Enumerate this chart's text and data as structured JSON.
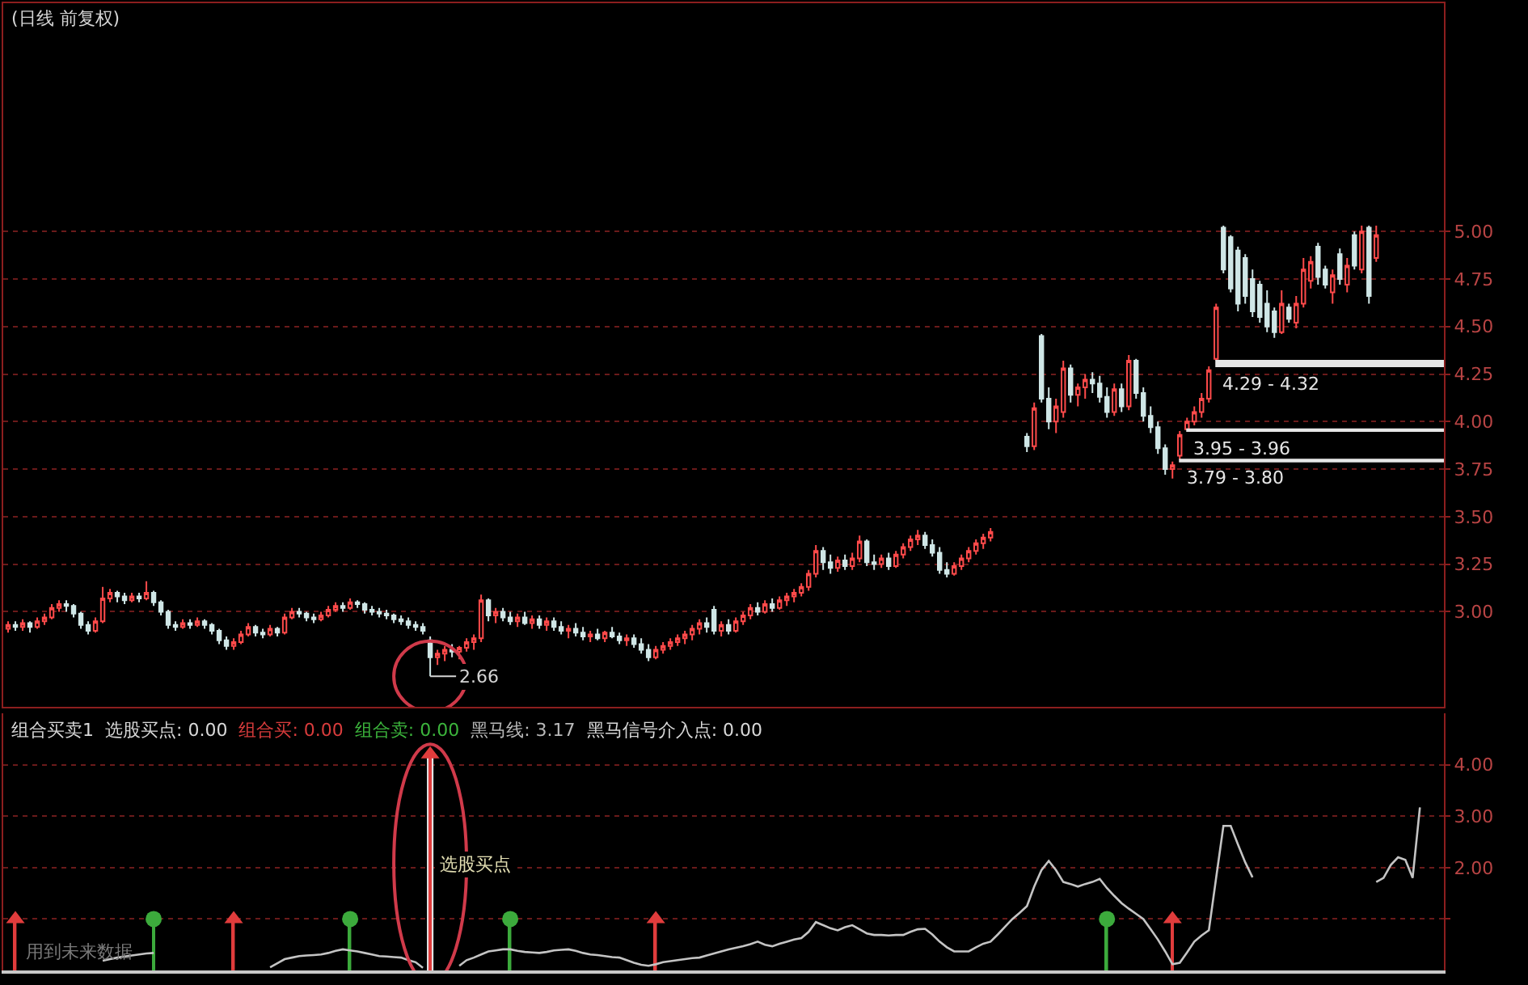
{
  "chart_data": [
    {
      "type": "candlestick",
      "title": "(日线 前复权)",
      "categories": [
        null,
        null,
        null,
        null,
        null,
        null,
        null,
        null,
        null,
        null,
        null,
        null,
        null,
        null,
        null,
        null,
        null,
        null,
        null,
        null,
        null,
        null,
        null,
        null,
        null,
        null,
        null,
        null,
        null,
        null,
        null,
        null,
        null,
        null,
        null,
        null,
        null,
        null,
        null,
        null,
        null,
        null,
        null,
        null,
        null,
        null,
        null,
        null,
        null,
        null,
        null,
        null,
        null,
        null,
        null,
        null,
        null,
        null,
        null,
        null,
        null,
        null,
        null,
        null,
        null,
        null,
        null,
        null,
        null,
        null,
        null,
        null,
        null,
        null,
        null,
        null,
        null,
        null,
        null,
        null,
        null,
        null,
        null,
        null,
        null,
        null,
        null,
        null,
        null,
        null,
        null,
        null,
        null,
        null,
        null,
        null,
        null,
        null,
        null,
        null,
        null,
        null,
        null,
        null,
        null,
        null,
        null,
        null,
        null,
        null,
        null,
        null,
        null,
        null,
        null,
        null,
        null,
        null,
        null,
        null,
        null,
        null,
        null,
        null,
        null,
        null,
        null,
        null,
        null,
        null,
        null,
        null,
        null,
        null,
        null,
        null,
        null,
        null,
        null,
        null,
        null,
        null,
        null,
        null,
        null,
        null,
        null,
        null,
        null,
        null,
        null,
        null,
        null,
        null,
        null,
        null,
        null,
        null,
        null,
        null,
        null,
        null,
        null,
        null,
        null,
        null,
        null,
        null,
        null,
        null,
        null,
        null,
        null,
        null,
        null,
        null,
        null,
        null,
        null,
        null,
        null,
        null,
        null,
        null,
        null,
        null,
        null,
        null,
        null,
        null,
        null,
        null,
        null,
        null,
        null
      ],
      "ohlc": [
        [
          2.91,
          2.95,
          2.89,
          2.93
        ],
        [
          2.93,
          2.95,
          2.9,
          2.92
        ],
        [
          2.92,
          2.96,
          2.9,
          2.94
        ],
        [
          2.94,
          2.95,
          2.89,
          2.92
        ],
        [
          2.92,
          2.97,
          2.91,
          2.95
        ],
        [
          2.95,
          2.99,
          2.93,
          2.97
        ],
        [
          2.97,
          3.04,
          2.96,
          3.02
        ],
        [
          3.02,
          3.06,
          3.0,
          3.04
        ],
        [
          3.04,
          3.06,
          3.0,
          3.03
        ],
        [
          3.03,
          3.04,
          2.97,
          2.99
        ],
        [
          2.99,
          3.0,
          2.91,
          2.93
        ],
        [
          2.93,
          2.95,
          2.88,
          2.9
        ],
        [
          2.9,
          2.97,
          2.89,
          2.95
        ],
        [
          2.95,
          3.13,
          2.94,
          3.07
        ],
        [
          3.07,
          3.12,
          3.05,
          3.1
        ],
        [
          3.1,
          3.11,
          3.05,
          3.08
        ],
        [
          3.08,
          3.1,
          3.04,
          3.06
        ],
        [
          3.06,
          3.1,
          3.05,
          3.08
        ],
        [
          3.08,
          3.1,
          3.05,
          3.07
        ],
        [
          3.07,
          3.16,
          3.06,
          3.1
        ],
        [
          3.1,
          3.11,
          3.03,
          3.05
        ],
        [
          3.05,
          3.06,
          2.98,
          3.0
        ],
        [
          3.0,
          3.01,
          2.91,
          2.93
        ],
        [
          2.93,
          2.95,
          2.9,
          2.92
        ],
        [
          2.92,
          2.96,
          2.91,
          2.94
        ],
        [
          2.94,
          2.96,
          2.91,
          2.93
        ],
        [
          2.93,
          2.97,
          2.92,
          2.95
        ],
        [
          2.95,
          2.96,
          2.91,
          2.93
        ],
        [
          2.93,
          2.94,
          2.88,
          2.9
        ],
        [
          2.9,
          2.91,
          2.83,
          2.85
        ],
        [
          2.85,
          2.87,
          2.8,
          2.82
        ],
        [
          2.82,
          2.86,
          2.8,
          2.84
        ],
        [
          2.84,
          2.9,
          2.83,
          2.88
        ],
        [
          2.88,
          2.94,
          2.87,
          2.92
        ],
        [
          2.92,
          2.93,
          2.87,
          2.89
        ],
        [
          2.89,
          2.91,
          2.86,
          2.88
        ],
        [
          2.88,
          2.93,
          2.87,
          2.91
        ],
        [
          2.91,
          2.92,
          2.87,
          2.89
        ],
        [
          2.89,
          2.99,
          2.88,
          2.97
        ],
        [
          2.97,
          3.02,
          2.96,
          3.0
        ],
        [
          3.0,
          3.02,
          2.97,
          2.99
        ],
        [
          2.99,
          3.0,
          2.95,
          2.97
        ],
        [
          2.97,
          2.99,
          2.94,
          2.96
        ],
        [
          2.96,
          3.0,
          2.95,
          2.98
        ],
        [
          2.98,
          3.03,
          2.97,
          3.01
        ],
        [
          3.01,
          3.05,
          3.0,
          3.03
        ],
        [
          3.03,
          3.05,
          3.0,
          3.02
        ],
        [
          3.02,
          3.07,
          3.01,
          3.05
        ],
        [
          3.05,
          3.06,
          3.02,
          3.04
        ],
        [
          3.04,
          3.05,
          2.99,
          3.01
        ],
        [
          3.01,
          3.03,
          2.98,
          3.0
        ],
        [
          3.0,
          3.02,
          2.97,
          2.99
        ],
        [
          2.99,
          3.01,
          2.96,
          2.98
        ],
        [
          2.98,
          2.99,
          2.94,
          2.96
        ],
        [
          2.96,
          2.98,
          2.93,
          2.95
        ],
        [
          2.95,
          2.97,
          2.91,
          2.93
        ],
        [
          2.93,
          2.95,
          2.9,
          2.92
        ],
        [
          2.92,
          2.94,
          2.88,
          2.9
        ],
        [
          2.85,
          2.87,
          2.66,
          2.76
        ],
        [
          2.76,
          2.8,
          2.72,
          2.78
        ],
        [
          2.78,
          2.82,
          2.74,
          2.8
        ],
        [
          2.8,
          2.83,
          2.76,
          2.79
        ],
        [
          2.79,
          2.82,
          2.75,
          2.81
        ],
        [
          2.81,
          2.86,
          2.79,
          2.84
        ],
        [
          2.84,
          2.88,
          2.8,
          2.86
        ],
        [
          2.86,
          3.09,
          2.84,
          3.06
        ],
        [
          3.06,
          3.07,
          2.95,
          2.98
        ],
        [
          2.98,
          3.02,
          2.94,
          3.0
        ],
        [
          3.0,
          3.02,
          2.95,
          2.97
        ],
        [
          2.97,
          3.0,
          2.93,
          2.95
        ],
        [
          2.95,
          2.99,
          2.92,
          2.97
        ],
        [
          2.97,
          3.0,
          2.93,
          2.94
        ],
        [
          2.94,
          2.98,
          2.91,
          2.96
        ],
        [
          2.96,
          2.98,
          2.91,
          2.93
        ],
        [
          2.93,
          2.97,
          2.9,
          2.95
        ],
        [
          2.95,
          2.97,
          2.9,
          2.92
        ],
        [
          2.92,
          2.95,
          2.88,
          2.9
        ],
        [
          2.9,
          2.93,
          2.86,
          2.91
        ],
        [
          2.91,
          2.94,
          2.87,
          2.89
        ],
        [
          2.89,
          2.92,
          2.85,
          2.87
        ],
        [
          2.87,
          2.9,
          2.84,
          2.88
        ],
        [
          2.88,
          2.91,
          2.85,
          2.86
        ],
        [
          2.86,
          2.9,
          2.84,
          2.89
        ],
        [
          2.89,
          2.92,
          2.86,
          2.87
        ],
        [
          2.87,
          2.89,
          2.83,
          2.85
        ],
        [
          2.85,
          2.88,
          2.82,
          2.86
        ],
        [
          2.86,
          2.88,
          2.81,
          2.83
        ],
        [
          2.83,
          2.86,
          2.78,
          2.8
        ],
        [
          2.8,
          2.83,
          2.74,
          2.76
        ],
        [
          2.76,
          2.82,
          2.75,
          2.8
        ],
        [
          2.8,
          2.84,
          2.78,
          2.82
        ],
        [
          2.82,
          2.86,
          2.8,
          2.84
        ],
        [
          2.84,
          2.88,
          2.82,
          2.86
        ],
        [
          2.86,
          2.9,
          2.83,
          2.88
        ],
        [
          2.88,
          2.93,
          2.85,
          2.91
        ],
        [
          2.91,
          2.96,
          2.88,
          2.94
        ],
        [
          2.94,
          2.97,
          2.89,
          2.92
        ],
        [
          3.01,
          3.03,
          2.88,
          2.9
        ],
        [
          2.9,
          2.95,
          2.87,
          2.93
        ],
        [
          2.93,
          2.96,
          2.88,
          2.9
        ],
        [
          2.9,
          2.97,
          2.89,
          2.95
        ],
        [
          2.95,
          3.0,
          2.93,
          2.98
        ],
        [
          2.98,
          3.04,
          2.96,
          3.02
        ],
        [
          3.02,
          3.05,
          2.98,
          3.0
        ],
        [
          3.0,
          3.06,
          2.99,
          3.04
        ],
        [
          3.04,
          3.07,
          3.0,
          3.02
        ],
        [
          3.02,
          3.08,
          3.01,
          3.06
        ],
        [
          3.06,
          3.1,
          3.03,
          3.08
        ],
        [
          3.08,
          3.12,
          3.05,
          3.1
        ],
        [
          3.1,
          3.15,
          3.08,
          3.13
        ],
        [
          3.13,
          3.22,
          3.11,
          3.2
        ],
        [
          3.2,
          3.35,
          3.18,
          3.32
        ],
        [
          3.32,
          3.34,
          3.22,
          3.26
        ],
        [
          3.26,
          3.3,
          3.2,
          3.23
        ],
        [
          3.23,
          3.29,
          3.21,
          3.27
        ],
        [
          3.27,
          3.3,
          3.22,
          3.24
        ],
        [
          3.24,
          3.31,
          3.22,
          3.28
        ],
        [
          3.28,
          3.4,
          3.26,
          3.37
        ],
        [
          3.37,
          3.38,
          3.24,
          3.26
        ],
        [
          3.26,
          3.3,
          3.22,
          3.25
        ],
        [
          3.25,
          3.3,
          3.23,
          3.28
        ],
        [
          3.28,
          3.31,
          3.22,
          3.24
        ],
        [
          3.24,
          3.32,
          3.23,
          3.3
        ],
        [
          3.3,
          3.36,
          3.28,
          3.34
        ],
        [
          3.34,
          3.4,
          3.32,
          3.38
        ],
        [
          3.38,
          3.43,
          3.35,
          3.4
        ],
        [
          3.4,
          3.42,
          3.33,
          3.35
        ],
        [
          3.35,
          3.38,
          3.29,
          3.31
        ],
        [
          3.31,
          3.34,
          3.2,
          3.22
        ],
        [
          3.22,
          3.26,
          3.18,
          3.2
        ],
        [
          3.2,
          3.26,
          3.19,
          3.24
        ],
        [
          3.24,
          3.3,
          3.22,
          3.28
        ],
        [
          3.28,
          3.34,
          3.26,
          3.32
        ],
        [
          3.32,
          3.38,
          3.3,
          3.36
        ],
        [
          3.36,
          3.41,
          3.33,
          3.39
        ],
        [
          3.39,
          3.44,
          3.37,
          3.42
        ],
        null,
        null,
        null,
        null,
        [
          3.92,
          3.94,
          3.84,
          3.87
        ],
        [
          3.87,
          4.1,
          3.85,
          4.07
        ],
        [
          4.45,
          4.46,
          4.1,
          4.12
        ],
        [
          4.12,
          4.18,
          3.96,
          4.0
        ],
        [
          4.0,
          4.12,
          3.94,
          4.08
        ],
        [
          4.05,
          4.32,
          4.02,
          4.28
        ],
        [
          4.28,
          4.3,
          4.1,
          4.14
        ],
        [
          4.14,
          4.2,
          4.08,
          4.18
        ],
        [
          4.18,
          4.25,
          4.12,
          4.22
        ],
        [
          4.22,
          4.26,
          4.15,
          4.2
        ],
        [
          4.2,
          4.24,
          4.1,
          4.13
        ],
        [
          4.13,
          4.18,
          4.02,
          4.05
        ],
        [
          4.05,
          4.2,
          4.03,
          4.17
        ],
        [
          4.17,
          4.2,
          4.05,
          4.08
        ],
        [
          4.08,
          4.35,
          4.06,
          4.32
        ],
        [
          4.32,
          4.33,
          4.12,
          4.15
        ],
        [
          4.15,
          4.18,
          4.0,
          4.03
        ],
        [
          4.03,
          4.08,
          3.94,
          3.97
        ],
        [
          3.97,
          4.0,
          3.83,
          3.86
        ],
        [
          3.86,
          3.88,
          3.72,
          3.75
        ],
        [
          3.75,
          3.79,
          3.7,
          3.77
        ],
        [
          3.82,
          3.95,
          3.8,
          3.93
        ],
        [
          3.96,
          4.02,
          3.96,
          4.0
        ],
        [
          4.0,
          4.08,
          3.98,
          4.05
        ],
        [
          4.05,
          4.15,
          4.02,
          4.12
        ],
        [
          4.12,
          4.29,
          4.1,
          4.27
        ],
        [
          4.33,
          4.62,
          4.32,
          4.6
        ],
        [
          5.02,
          5.03,
          4.78,
          4.8
        ],
        [
          4.97,
          4.98,
          4.68,
          4.7
        ],
        [
          4.9,
          4.92,
          4.58,
          4.62
        ],
        [
          4.86,
          4.88,
          4.62,
          4.66
        ],
        [
          4.75,
          4.8,
          4.55,
          4.58
        ],
        [
          4.72,
          4.74,
          4.52,
          4.55
        ],
        [
          4.62,
          4.69,
          4.47,
          4.5
        ],
        [
          4.58,
          4.6,
          4.44,
          4.47
        ],
        [
          4.47,
          4.69,
          4.46,
          4.62
        ],
        [
          4.6,
          4.62,
          4.52,
          4.54
        ],
        [
          4.52,
          4.66,
          4.49,
          4.62
        ],
        [
          4.62,
          4.86,
          4.6,
          4.8
        ],
        [
          4.74,
          4.87,
          4.7,
          4.84
        ],
        [
          4.92,
          4.94,
          4.72,
          4.76
        ],
        [
          4.8,
          4.82,
          4.7,
          4.72
        ],
        [
          4.68,
          4.8,
          4.62,
          4.77
        ],
        [
          4.88,
          4.91,
          4.72,
          4.75
        ],
        [
          4.72,
          4.86,
          4.68,
          4.82
        ],
        [
          4.98,
          5.0,
          4.8,
          4.82
        ],
        [
          4.8,
          5.03,
          4.78,
          5.0
        ],
        [
          5.02,
          5.03,
          4.62,
          4.66
        ],
        [
          4.86,
          5.03,
          4.84,
          4.98
        ],
        null,
        null,
        null,
        null,
        null,
        null
      ],
      "ylim": [
        2.5,
        6.2
      ],
      "yticks": [
        {
          "value": 3,
          "label": "3.00"
        },
        3.25,
        {
          "value": 3.5,
          "label": "3.50"
        },
        3.75,
        {
          "value": 4,
          "label": "4.00"
        },
        4.25,
        {
          "value": 4.5,
          "label": "4.50"
        },
        4.75,
        {
          "value": 5,
          "label": "5.00"
        }
      ],
      "grid": "y",
      "tick_labels": "y",
      "bands": [
        {
          "axis": "y",
          "from": 4.29,
          "to": 4.32,
          "label": "4.29 - 4.32",
          "color": "#e6e6e6"
        },
        {
          "axis": "y",
          "from": 3.95,
          "to": 3.96,
          "label": "3.95 - 3.96",
          "color": "#e6e6e6"
        },
        {
          "axis": "y",
          "from": 3.79,
          "to": 3.8,
          "label": "3.79 - 3.80",
          "color": "#e6e6e6"
        }
      ],
      "annotations": [
        "2.66"
      ]
    },
    {
      "type": "line",
      "categories": [
        null,
        null,
        null,
        null,
        null,
        null,
        null,
        null,
        null,
        null,
        null,
        null,
        null,
        null,
        null,
        null,
        null,
        null,
        null,
        null,
        null,
        null,
        null,
        null,
        null,
        null,
        null,
        null,
        null,
        null,
        null,
        null,
        null,
        null,
        null,
        null,
        null,
        null,
        null,
        null,
        null,
        null,
        null,
        null,
        null,
        null,
        null,
        null,
        null,
        null,
        null,
        null,
        null,
        null,
        null,
        null,
        null,
        null,
        null,
        null,
        null,
        null,
        null,
        null,
        null,
        null,
        null,
        null,
        null,
        null,
        null,
        null,
        null,
        null,
        null,
        null,
        null,
        null,
        null,
        null,
        null,
        null,
        null,
        null,
        null,
        null,
        null,
        null,
        null,
        null,
        null,
        null,
        null,
        null,
        null,
        null,
        null,
        null,
        null,
        null,
        null,
        null,
        null,
        null,
        null,
        null,
        null,
        null,
        null,
        null,
        null,
        null,
        null,
        null,
        null,
        null,
        null,
        null,
        null,
        null,
        null,
        null,
        null,
        null,
        null,
        null,
        null,
        null,
        null,
        null,
        null,
        null,
        null,
        null,
        null,
        null,
        null,
        null,
        null,
        null,
        null,
        null,
        null,
        null,
        null,
        null,
        null,
        null,
        null,
        null,
        null,
        null,
        null,
        null,
        null,
        null,
        null,
        null,
        null,
        null,
        null,
        null,
        null,
        null,
        null,
        null,
        null,
        null,
        null,
        null,
        null,
        null,
        null,
        null,
        null,
        null,
        null,
        null,
        null,
        null,
        null,
        null,
        null,
        null,
        null,
        null,
        null,
        null,
        null,
        null,
        null,
        null,
        null,
        null,
        null
      ],
      "series": [
        {
          "type": "bar",
          "color": "#e6e6e6",
          "values": [
            null,
            null,
            null,
            null,
            null,
            null,
            null,
            null,
            null,
            null,
            null,
            null,
            null,
            null,
            null,
            null,
            null,
            null,
            null,
            null,
            null,
            null,
            null,
            null,
            null,
            null,
            null,
            null,
            null,
            null,
            null,
            null,
            null,
            null,
            null,
            null,
            null,
            null,
            null,
            null,
            null,
            null,
            null,
            null,
            null,
            null,
            null,
            null,
            null,
            null,
            null,
            null,
            null,
            null,
            null,
            null,
            null,
            null,
            4.15,
            null,
            null,
            null,
            null,
            null,
            null,
            null,
            null,
            null,
            null,
            null,
            null,
            null,
            null,
            null,
            null,
            null,
            null,
            null,
            null,
            null,
            null,
            null,
            null,
            null,
            null,
            null,
            null,
            null,
            null,
            null,
            null,
            null,
            null,
            null,
            null,
            null,
            null,
            null,
            null,
            null,
            null,
            null,
            null,
            null,
            null,
            null,
            null,
            null,
            null,
            null,
            null,
            null,
            null,
            null,
            null,
            null,
            null,
            null,
            null,
            null,
            null,
            null,
            null,
            null,
            null,
            null,
            null,
            null,
            null,
            null,
            null,
            null,
            null,
            null,
            null,
            null,
            null,
            null,
            null,
            null,
            null,
            null,
            null,
            null,
            null,
            null,
            null,
            null,
            null,
            null,
            null,
            null,
            null,
            null,
            null,
            null,
            null,
            null,
            null,
            null,
            null,
            null,
            null,
            null,
            null,
            null,
            null,
            null,
            null,
            null,
            null,
            null,
            null,
            null,
            null,
            null,
            null,
            null,
            null,
            null,
            null,
            null,
            null,
            null,
            null,
            null,
            null,
            null,
            null,
            null,
            null,
            null,
            null,
            null,
            null
          ]
        },
        {
          "type": "line",
          "color": "#c4c4c4",
          "values": [
            null,
            null,
            null,
            null,
            null,
            null,
            null,
            null,
            null,
            null,
            null,
            null,
            null,
            0.19,
            0.22,
            0.25,
            0.27,
            0.29,
            0.31,
            0.33,
            0.34,
            null,
            null,
            null,
            null,
            null,
            null,
            null,
            null,
            null,
            null,
            null,
            null,
            null,
            null,
            null,
            0.06,
            0.14,
            0.22,
            0.25,
            0.28,
            0.29,
            0.3,
            0.31,
            0.34,
            0.38,
            0.41,
            0.39,
            0.37,
            0.34,
            0.31,
            0.28,
            0.27,
            0.26,
            0.25,
            0.2,
            0.16,
            0.05,
            null,
            null,
            null,
            null,
            0.09,
            0.2,
            0.25,
            0.31,
            0.37,
            0.39,
            0.41,
            0.41,
            0.38,
            0.36,
            0.35,
            0.34,
            0.36,
            0.39,
            0.4,
            0.41,
            0.38,
            0.34,
            0.31,
            0.3,
            0.28,
            0.26,
            0.25,
            0.2,
            0.15,
            0.11,
            0.09,
            0.12,
            0.16,
            0.18,
            0.2,
            0.22,
            0.24,
            0.25,
            0.29,
            0.33,
            0.37,
            0.41,
            0.44,
            0.47,
            0.51,
            0.56,
            0.5,
            0.47,
            0.52,
            0.56,
            0.6,
            0.63,
            0.75,
            0.94,
            0.88,
            0.82,
            0.78,
            0.84,
            0.88,
            0.8,
            0.72,
            0.69,
            0.69,
            0.68,
            0.69,
            0.69,
            0.75,
            0.8,
            0.81,
            0.7,
            0.56,
            0.45,
            0.37,
            0.37,
            0.37,
            0.45,
            0.52,
            0.56,
            0.7,
            0.85,
            1.0,
            1.12,
            1.25,
            1.63,
            1.95,
            2.13,
            1.95,
            1.72,
            1.68,
            1.63,
            1.68,
            1.72,
            1.78,
            1.6,
            1.45,
            1.31,
            1.2,
            1.1,
            1.0,
            0.8,
            0.6,
            0.37,
            0.12,
            0.15,
            0.35,
            0.56,
            0.68,
            0.78,
            1.8,
            2.81,
            2.81,
            2.45,
            2.1,
            1.81,
            null,
            null,
            null,
            null,
            null,
            null,
            null,
            null,
            null,
            null,
            null,
            null,
            null,
            null,
            null,
            null,
            1.72,
            1.8,
            2.05,
            2.2,
            2.15,
            1.8,
            3.17
          ]
        },
        {
          "type": "lollipop",
          "color": "#e03c3c",
          "marker": "triangle",
          "values": [
            null,
            1.0,
            null,
            null,
            null,
            null,
            null,
            null,
            null,
            null,
            null,
            null,
            null,
            null,
            null,
            null,
            null,
            null,
            null,
            null,
            null,
            null,
            null,
            null,
            null,
            null,
            null,
            null,
            null,
            null,
            null,
            1.0,
            null,
            null,
            null,
            null,
            null,
            null,
            null,
            null,
            null,
            null,
            null,
            null,
            null,
            null,
            null,
            null,
            null,
            null,
            null,
            null,
            null,
            null,
            null,
            null,
            null,
            null,
            4.2,
            null,
            null,
            null,
            null,
            null,
            null,
            null,
            null,
            null,
            null,
            null,
            null,
            null,
            null,
            null,
            null,
            null,
            null,
            null,
            null,
            null,
            null,
            null,
            null,
            null,
            null,
            null,
            null,
            null,
            null,
            1.0,
            null,
            null,
            null,
            null,
            null,
            null,
            null,
            null,
            null,
            null,
            null,
            null,
            null,
            null,
            null,
            null,
            null,
            null,
            null,
            null,
            null,
            null,
            null,
            null,
            null,
            null,
            null,
            null,
            null,
            null,
            null,
            null,
            null,
            null,
            null,
            null,
            null,
            null,
            null,
            null,
            null,
            null,
            null,
            null,
            null,
            null,
            null,
            null,
            null,
            null,
            null,
            null,
            null,
            null,
            null,
            null,
            null,
            null,
            null,
            null,
            null,
            null,
            null,
            null,
            null,
            null,
            null,
            null,
            null,
            null,
            1.0,
            null,
            null,
            null,
            null,
            null,
            null,
            null,
            null,
            null,
            null,
            null,
            null,
            null,
            null,
            null,
            null,
            null,
            null,
            null,
            null,
            null,
            null,
            null,
            null,
            null,
            null,
            null,
            null,
            null,
            null,
            null,
            null,
            null,
            null
          ]
        },
        {
          "type": "lollipop",
          "color": "#3caa3c",
          "marker": "circle",
          "values": [
            null,
            null,
            null,
            null,
            null,
            null,
            null,
            null,
            null,
            null,
            null,
            null,
            null,
            null,
            null,
            null,
            null,
            null,
            null,
            null,
            1.0,
            null,
            null,
            null,
            null,
            null,
            null,
            null,
            null,
            null,
            null,
            null,
            null,
            null,
            null,
            null,
            null,
            null,
            null,
            null,
            null,
            null,
            null,
            null,
            null,
            null,
            null,
            1.0,
            null,
            null,
            null,
            null,
            null,
            null,
            null,
            null,
            null,
            null,
            null,
            null,
            null,
            null,
            null,
            null,
            null,
            null,
            null,
            null,
            null,
            1.0,
            null,
            null,
            null,
            null,
            null,
            null,
            null,
            null,
            null,
            null,
            null,
            null,
            null,
            null,
            null,
            null,
            null,
            null,
            null,
            null,
            null,
            null,
            null,
            null,
            null,
            null,
            null,
            null,
            null,
            null,
            null,
            null,
            null,
            null,
            null,
            null,
            null,
            null,
            null,
            null,
            null,
            null,
            null,
            null,
            null,
            null,
            null,
            null,
            null,
            null,
            null,
            null,
            null,
            null,
            null,
            null,
            null,
            null,
            null,
            null,
            null,
            null,
            null,
            null,
            null,
            null,
            null,
            null,
            null,
            null,
            null,
            null,
            null,
            null,
            null,
            null,
            null,
            null,
            null,
            null,
            null,
            1.0,
            null,
            null,
            null,
            null,
            null,
            null,
            null,
            null,
            null,
            null,
            null,
            null,
            null,
            null,
            null,
            null,
            null,
            null,
            null,
            null,
            null,
            null,
            null,
            null,
            null,
            null,
            null,
            null,
            null,
            null,
            null,
            null,
            null,
            null,
            null,
            null,
            null,
            null,
            null,
            null,
            null,
            null,
            null
          ]
        }
      ],
      "ylim": [
        0,
        5
      ],
      "yticks": [
        {
          "value": 1,
          "label": null
        },
        {
          "value": 2,
          "label": "2.00"
        },
        {
          "value": 3,
          "label": "3.00"
        },
        {
          "value": 4,
          "label": "4.00"
        }
      ],
      "grid": "y",
      "tick_labels": "y",
      "annotations": [
        "组合买卖1",
        "选股买点: 0.00",
        "组合买: 0.00",
        "组合卖: 0.00",
        "黑马线: 3.17",
        "黑马信号介入点: 0.00",
        "用到未来数据",
        "选股买点"
      ]
    }
  ]
}
